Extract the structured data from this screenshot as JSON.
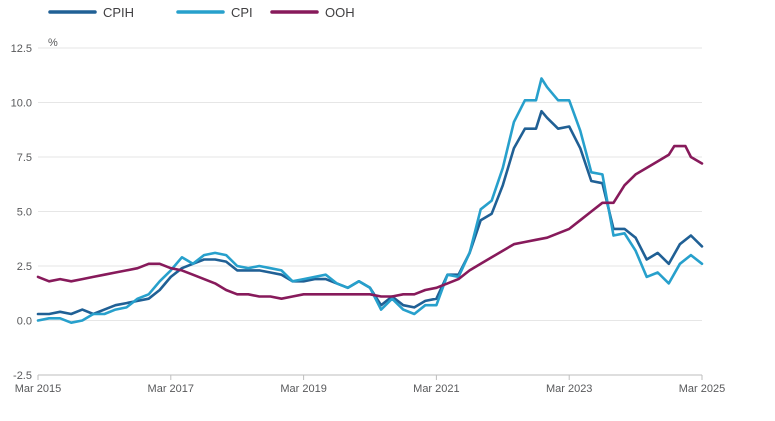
{
  "chart_data": {
    "type": "line",
    "ylabel": "%",
    "ylim": [
      -2.5,
      12.5
    ],
    "yticks": [
      "12.5",
      "10.0",
      "7.5",
      "5.0",
      "2.5",
      "0.0",
      "-2.5"
    ],
    "xlim": [
      "2015-03",
      "2025-03"
    ],
    "xticks": [
      "Mar 2015",
      "Mar 2017",
      "Mar 2019",
      "Mar 2021",
      "Mar 2023",
      "Mar 2025"
    ],
    "grid": "horizontal",
    "legend_position": "top-left",
    "series": [
      {
        "name": "CPIH",
        "color": "#206095",
        "points": [
          [
            "2015-03",
            0.3
          ],
          [
            "2015-05",
            0.3
          ],
          [
            "2015-07",
            0.4
          ],
          [
            "2015-09",
            0.3
          ],
          [
            "2015-11",
            0.5
          ],
          [
            "2016-01",
            0.3
          ],
          [
            "2016-03",
            0.5
          ],
          [
            "2016-05",
            0.7
          ],
          [
            "2016-07",
            0.8
          ],
          [
            "2016-09",
            0.9
          ],
          [
            "2016-11",
            1.0
          ],
          [
            "2017-01",
            1.4
          ],
          [
            "2017-03",
            2.0
          ],
          [
            "2017-05",
            2.4
          ],
          [
            "2017-07",
            2.6
          ],
          [
            "2017-09",
            2.8
          ],
          [
            "2017-11",
            2.8
          ],
          [
            "2018-01",
            2.7
          ],
          [
            "2018-03",
            2.3
          ],
          [
            "2018-05",
            2.3
          ],
          [
            "2018-07",
            2.3
          ],
          [
            "2018-09",
            2.2
          ],
          [
            "2018-11",
            2.1
          ],
          [
            "2019-01",
            1.8
          ],
          [
            "2019-03",
            1.8
          ],
          [
            "2019-05",
            1.9
          ],
          [
            "2019-07",
            1.9
          ],
          [
            "2019-09",
            1.7
          ],
          [
            "2019-11",
            1.5
          ],
          [
            "2020-01",
            1.8
          ],
          [
            "2020-03",
            1.5
          ],
          [
            "2020-05",
            0.7
          ],
          [
            "2020-07",
            1.1
          ],
          [
            "2020-09",
            0.7
          ],
          [
            "2020-11",
            0.6
          ],
          [
            "2021-01",
            0.9
          ],
          [
            "2021-03",
            1.0
          ],
          [
            "2021-05",
            2.1
          ],
          [
            "2021-07",
            2.1
          ],
          [
            "2021-09",
            3.1
          ],
          [
            "2021-11",
            4.6
          ],
          [
            "2022-01",
            4.9
          ],
          [
            "2022-03",
            6.2
          ],
          [
            "2022-05",
            7.9
          ],
          [
            "2022-07",
            8.8
          ],
          [
            "2022-09",
            8.8
          ],
          [
            "2022-10",
            9.6
          ],
          [
            "2022-11",
            9.3
          ],
          [
            "2023-01",
            8.8
          ],
          [
            "2023-03",
            8.9
          ],
          [
            "2023-05",
            7.9
          ],
          [
            "2023-07",
            6.4
          ],
          [
            "2023-09",
            6.3
          ],
          [
            "2023-11",
            4.2
          ],
          [
            "2024-01",
            4.2
          ],
          [
            "2024-03",
            3.8
          ],
          [
            "2024-05",
            2.8
          ],
          [
            "2024-07",
            3.1
          ],
          [
            "2024-09",
            2.6
          ],
          [
            "2024-11",
            3.5
          ],
          [
            "2025-01",
            3.9
          ],
          [
            "2025-03",
            3.4
          ]
        ]
      },
      {
        "name": "CPI",
        "color": "#27a0cc",
        "points": [
          [
            "2015-03",
            0.0
          ],
          [
            "2015-05",
            0.1
          ],
          [
            "2015-07",
            0.1
          ],
          [
            "2015-09",
            -0.1
          ],
          [
            "2015-11",
            0.0
          ],
          [
            "2016-01",
            0.3
          ],
          [
            "2016-03",
            0.3
          ],
          [
            "2016-05",
            0.5
          ],
          [
            "2016-07",
            0.6
          ],
          [
            "2016-09",
            1.0
          ],
          [
            "2016-11",
            1.2
          ],
          [
            "2017-01",
            1.8
          ],
          [
            "2017-03",
            2.3
          ],
          [
            "2017-05",
            2.9
          ],
          [
            "2017-07",
            2.6
          ],
          [
            "2017-09",
            3.0
          ],
          [
            "2017-11",
            3.1
          ],
          [
            "2018-01",
            3.0
          ],
          [
            "2018-03",
            2.5
          ],
          [
            "2018-05",
            2.4
          ],
          [
            "2018-07",
            2.5
          ],
          [
            "2018-09",
            2.4
          ],
          [
            "2018-11",
            2.3
          ],
          [
            "2019-01",
            1.8
          ],
          [
            "2019-03",
            1.9
          ],
          [
            "2019-05",
            2.0
          ],
          [
            "2019-07",
            2.1
          ],
          [
            "2019-09",
            1.7
          ],
          [
            "2019-11",
            1.5
          ],
          [
            "2020-01",
            1.8
          ],
          [
            "2020-03",
            1.5
          ],
          [
            "2020-05",
            0.5
          ],
          [
            "2020-07",
            1.0
          ],
          [
            "2020-09",
            0.5
          ],
          [
            "2020-11",
            0.3
          ],
          [
            "2021-01",
            0.7
          ],
          [
            "2021-03",
            0.7
          ],
          [
            "2021-05",
            2.1
          ],
          [
            "2021-07",
            2.0
          ],
          [
            "2021-09",
            3.1
          ],
          [
            "2021-11",
            5.1
          ],
          [
            "2022-01",
            5.5
          ],
          [
            "2022-03",
            7.0
          ],
          [
            "2022-05",
            9.1
          ],
          [
            "2022-07",
            10.1
          ],
          [
            "2022-09",
            10.1
          ],
          [
            "2022-10",
            11.1
          ],
          [
            "2022-11",
            10.7
          ],
          [
            "2023-01",
            10.1
          ],
          [
            "2023-03",
            10.1
          ],
          [
            "2023-05",
            8.7
          ],
          [
            "2023-07",
            6.8
          ],
          [
            "2023-09",
            6.7
          ],
          [
            "2023-11",
            3.9
          ],
          [
            "2024-01",
            4.0
          ],
          [
            "2024-03",
            3.2
          ],
          [
            "2024-05",
            2.0
          ],
          [
            "2024-07",
            2.2
          ],
          [
            "2024-09",
            1.7
          ],
          [
            "2024-11",
            2.6
          ],
          [
            "2025-01",
            3.0
          ],
          [
            "2025-03",
            2.6
          ]
        ]
      },
      {
        "name": "OOH",
        "color": "#871a5b",
        "points": [
          [
            "2015-03",
            2.0
          ],
          [
            "2015-05",
            1.8
          ],
          [
            "2015-07",
            1.9
          ],
          [
            "2015-09",
            1.8
          ],
          [
            "2015-11",
            1.9
          ],
          [
            "2016-01",
            2.0
          ],
          [
            "2016-03",
            2.1
          ],
          [
            "2016-05",
            2.2
          ],
          [
            "2016-07",
            2.3
          ],
          [
            "2016-09",
            2.4
          ],
          [
            "2016-11",
            2.6
          ],
          [
            "2017-01",
            2.6
          ],
          [
            "2017-03",
            2.4
          ],
          [
            "2017-05",
            2.3
          ],
          [
            "2017-07",
            2.1
          ],
          [
            "2017-09",
            1.9
          ],
          [
            "2017-11",
            1.7
          ],
          [
            "2018-01",
            1.4
          ],
          [
            "2018-03",
            1.2
          ],
          [
            "2018-05",
            1.2
          ],
          [
            "2018-07",
            1.1
          ],
          [
            "2018-09",
            1.1
          ],
          [
            "2018-11",
            1.0
          ],
          [
            "2019-01",
            1.1
          ],
          [
            "2019-03",
            1.2
          ],
          [
            "2019-05",
            1.2
          ],
          [
            "2019-07",
            1.2
          ],
          [
            "2019-09",
            1.2
          ],
          [
            "2019-11",
            1.2
          ],
          [
            "2020-01",
            1.2
          ],
          [
            "2020-03",
            1.2
          ],
          [
            "2020-05",
            1.1
          ],
          [
            "2020-07",
            1.1
          ],
          [
            "2020-09",
            1.2
          ],
          [
            "2020-11",
            1.2
          ],
          [
            "2021-01",
            1.4
          ],
          [
            "2021-03",
            1.5
          ],
          [
            "2021-05",
            1.7
          ],
          [
            "2021-07",
            1.9
          ],
          [
            "2021-09",
            2.3
          ],
          [
            "2021-11",
            2.6
          ],
          [
            "2022-01",
            2.9
          ],
          [
            "2022-03",
            3.2
          ],
          [
            "2022-05",
            3.5
          ],
          [
            "2022-07",
            3.6
          ],
          [
            "2022-09",
            3.7
          ],
          [
            "2022-11",
            3.8
          ],
          [
            "2023-01",
            4.0
          ],
          [
            "2023-03",
            4.2
          ],
          [
            "2023-05",
            4.6
          ],
          [
            "2023-07",
            5.0
          ],
          [
            "2023-09",
            5.4
          ],
          [
            "2023-11",
            5.4
          ],
          [
            "2024-01",
            6.2
          ],
          [
            "2024-03",
            6.7
          ],
          [
            "2024-05",
            7.0
          ],
          [
            "2024-07",
            7.3
          ],
          [
            "2024-09",
            7.6
          ],
          [
            "2024-10",
            8.0
          ],
          [
            "2024-12",
            8.0
          ],
          [
            "2025-01",
            7.5
          ],
          [
            "2025-03",
            7.2
          ]
        ]
      }
    ]
  }
}
